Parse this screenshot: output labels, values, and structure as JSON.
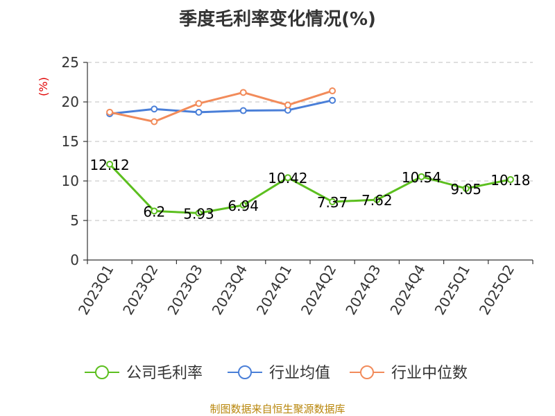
{
  "chart_data": {
    "type": "line",
    "title": "季度毛利率变化情况(%)",
    "ylabel": "(%)",
    "xlabel": "",
    "ylim": [
      0,
      25
    ],
    "yticks": [
      0,
      5,
      10,
      15,
      20,
      25
    ],
    "grid": true,
    "legend_position": "bottom",
    "categories": [
      "2023Q1",
      "2023Q2",
      "2023Q3",
      "2023Q4",
      "2024Q1",
      "2024Q2",
      "2024Q3",
      "2024Q4",
      "2025Q1",
      "2025Q2"
    ],
    "series": [
      {
        "name": "公司毛利率",
        "color": "#5cbf1f",
        "values": [
          12.12,
          6.2,
          5.93,
          6.94,
          10.42,
          7.37,
          7.62,
          10.54,
          9.05,
          10.18
        ],
        "labels": [
          "12.12",
          "6.2",
          "5.93",
          "6.94",
          "10.42",
          "7.37",
          "7.62",
          "10.54",
          "9.05",
          "10.18"
        ]
      },
      {
        "name": "行业均值",
        "color": "#4a7fd8",
        "values": [
          18.5,
          19.1,
          18.7,
          18.9,
          18.95,
          20.2,
          null,
          null,
          null,
          null
        ]
      },
      {
        "name": "行业中位数",
        "color": "#f28b5a",
        "values": [
          18.7,
          17.5,
          19.8,
          21.2,
          19.6,
          21.4,
          null,
          null,
          null,
          null
        ]
      }
    ]
  },
  "source": "制图数据来自恒生聚源数据库"
}
